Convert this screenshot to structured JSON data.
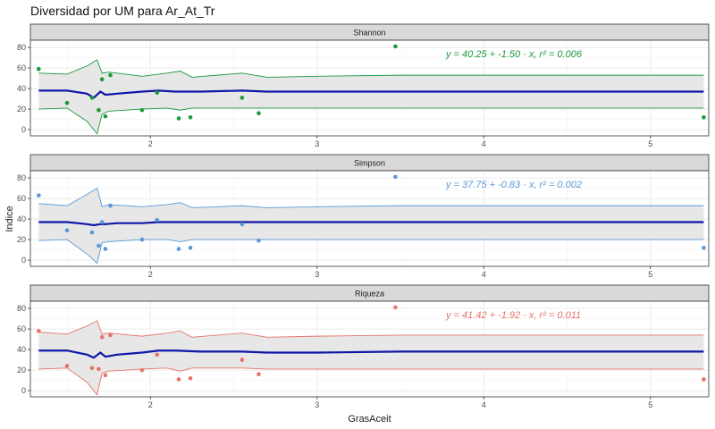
{
  "chart_title": "Diversidad por UM para Ar_At_Tr",
  "chart_data": {
    "type": "scatter",
    "title": "Diversidad por UM para Ar_At_Tr",
    "xlabel": "GrasAceit",
    "ylabel": "Indice",
    "xlim": [
      1.28,
      5.35
    ],
    "x_ticks": [
      "2",
      "3",
      "4",
      "5"
    ],
    "x_tick_values": [
      2,
      3,
      4,
      5
    ],
    "ylim": [
      -6,
      87
    ],
    "y_ticks": [
      "0",
      "20",
      "40",
      "60",
      "80"
    ],
    "y_tick_values": [
      0,
      20,
      40,
      60,
      80
    ],
    "grid": true,
    "panels": [
      {
        "name": "Shannon",
        "color": "#1a9a3a",
        "equation": "y = 40.25 + -1.50 · x,  r² = 0.006",
        "points": [
          [
            1.33,
            59
          ],
          [
            1.5,
            26
          ],
          [
            1.65,
            31
          ],
          [
            1.69,
            19
          ],
          [
            1.71,
            49
          ],
          [
            1.73,
            13
          ],
          [
            1.76,
            53
          ],
          [
            1.95,
            19
          ],
          [
            2.04,
            36
          ],
          [
            2.17,
            11
          ],
          [
            2.24,
            12
          ],
          [
            2.55,
            31
          ],
          [
            2.65,
            16
          ],
          [
            3.47,
            81
          ],
          [
            5.32,
            12
          ]
        ],
        "trend": [
          [
            1.33,
            38
          ],
          [
            1.5,
            38
          ],
          [
            1.62,
            35
          ],
          [
            1.66,
            31
          ],
          [
            1.7,
            37
          ],
          [
            1.73,
            34
          ],
          [
            1.8,
            35
          ],
          [
            1.95,
            37
          ],
          [
            2.05,
            38
          ],
          [
            2.15,
            37
          ],
          [
            2.3,
            37
          ],
          [
            2.55,
            38
          ],
          [
            2.7,
            37
          ],
          [
            3,
            37
          ],
          [
            3.5,
            37
          ],
          [
            4.5,
            37
          ],
          [
            5.32,
            37
          ]
        ],
        "upper": [
          [
            1.33,
            55
          ],
          [
            1.5,
            54
          ],
          [
            1.62,
            62
          ],
          [
            1.68,
            68
          ],
          [
            1.71,
            55
          ],
          [
            1.75,
            56
          ],
          [
            1.95,
            52
          ],
          [
            2.1,
            55
          ],
          [
            2.18,
            57
          ],
          [
            2.25,
            51
          ],
          [
            2.55,
            55
          ],
          [
            2.7,
            51
          ],
          [
            3,
            52
          ],
          [
            3.5,
            53
          ],
          [
            4.5,
            53
          ],
          [
            5.32,
            53
          ]
        ],
        "lower": [
          [
            1.33,
            20
          ],
          [
            1.5,
            21
          ],
          [
            1.62,
            8
          ],
          [
            1.68,
            -4
          ],
          [
            1.71,
            15
          ],
          [
            1.75,
            18
          ],
          [
            1.95,
            20
          ],
          [
            2.1,
            21
          ],
          [
            2.18,
            19
          ],
          [
            2.25,
            21
          ],
          [
            2.55,
            21
          ],
          [
            2.7,
            21
          ],
          [
            3,
            21
          ],
          [
            3.5,
            21
          ],
          [
            4.5,
            21
          ],
          [
            5.32,
            21
          ]
        ]
      },
      {
        "name": "Simpson",
        "color": "#5a98d8",
        "equation": "y = 37.75 + -0.83 · x,  r² = 0.002",
        "points": [
          [
            1.33,
            63
          ],
          [
            1.5,
            29
          ],
          [
            1.65,
            27
          ],
          [
            1.69,
            14
          ],
          [
            1.71,
            37
          ],
          [
            1.73,
            11
          ],
          [
            1.76,
            53
          ],
          [
            1.95,
            20
          ],
          [
            2.04,
            39
          ],
          [
            2.17,
            11
          ],
          [
            2.24,
            12
          ],
          [
            2.55,
            35
          ],
          [
            2.65,
            19
          ],
          [
            3.47,
            81
          ],
          [
            5.32,
            12
          ]
        ],
        "trend": [
          [
            1.33,
            37
          ],
          [
            1.5,
            37
          ],
          [
            1.62,
            35
          ],
          [
            1.66,
            34
          ],
          [
            1.7,
            35
          ],
          [
            1.73,
            35
          ],
          [
            1.8,
            36
          ],
          [
            1.95,
            36
          ],
          [
            2.05,
            37
          ],
          [
            2.3,
            37
          ],
          [
            2.55,
            37
          ],
          [
            3,
            37
          ],
          [
            4,
            37
          ],
          [
            5.32,
            37
          ]
        ],
        "upper": [
          [
            1.33,
            55
          ],
          [
            1.5,
            53
          ],
          [
            1.62,
            64
          ],
          [
            1.68,
            70
          ],
          [
            1.71,
            52
          ],
          [
            1.75,
            54
          ],
          [
            1.95,
            52
          ],
          [
            2.1,
            54
          ],
          [
            2.18,
            56
          ],
          [
            2.25,
            51
          ],
          [
            2.55,
            53
          ],
          [
            2.7,
            51
          ],
          [
            3,
            52
          ],
          [
            3.5,
            53
          ],
          [
            4.5,
            53
          ],
          [
            5.32,
            53
          ]
        ],
        "lower": [
          [
            1.33,
            19
          ],
          [
            1.5,
            20
          ],
          [
            1.62,
            6
          ],
          [
            1.68,
            -3
          ],
          [
            1.71,
            17
          ],
          [
            1.75,
            18
          ],
          [
            1.95,
            20
          ],
          [
            2.1,
            20
          ],
          [
            2.18,
            18
          ],
          [
            2.25,
            20
          ],
          [
            2.55,
            20
          ],
          [
            2.7,
            20
          ],
          [
            3,
            20
          ],
          [
            3.5,
            20
          ],
          [
            4.5,
            20
          ],
          [
            5.32,
            20
          ]
        ]
      },
      {
        "name": "Riqueza",
        "color": "#e5746a",
        "equation": "y = 41.42 + -1.92 · x,  r² = 0.011",
        "points": [
          [
            1.33,
            58
          ],
          [
            1.5,
            24
          ],
          [
            1.65,
            22
          ],
          [
            1.69,
            21
          ],
          [
            1.71,
            52
          ],
          [
            1.73,
            15
          ],
          [
            1.76,
            54
          ],
          [
            1.95,
            20
          ],
          [
            2.04,
            35
          ],
          [
            2.17,
            11
          ],
          [
            2.24,
            12
          ],
          [
            2.55,
            30
          ],
          [
            2.65,
            16
          ],
          [
            3.47,
            81
          ],
          [
            5.32,
            11
          ]
        ],
        "trend": [
          [
            1.33,
            39
          ],
          [
            1.5,
            39
          ],
          [
            1.62,
            35
          ],
          [
            1.66,
            32
          ],
          [
            1.7,
            37
          ],
          [
            1.73,
            33
          ],
          [
            1.8,
            35
          ],
          [
            1.95,
            37
          ],
          [
            2.05,
            39
          ],
          [
            2.15,
            39
          ],
          [
            2.3,
            38
          ],
          [
            2.55,
            38
          ],
          [
            2.7,
            37
          ],
          [
            3,
            37
          ],
          [
            3.5,
            38
          ],
          [
            4.5,
            38
          ],
          [
            5.32,
            38
          ]
        ],
        "upper": [
          [
            1.33,
            57
          ],
          [
            1.5,
            55
          ],
          [
            1.62,
            63
          ],
          [
            1.68,
            68
          ],
          [
            1.71,
            55
          ],
          [
            1.75,
            56
          ],
          [
            1.95,
            53
          ],
          [
            2.1,
            56
          ],
          [
            2.18,
            58
          ],
          [
            2.25,
            52
          ],
          [
            2.55,
            56
          ],
          [
            2.7,
            52
          ],
          [
            3,
            53
          ],
          [
            3.5,
            54
          ],
          [
            4.5,
            54
          ],
          [
            5.32,
            54
          ]
        ],
        "lower": [
          [
            1.33,
            21
          ],
          [
            1.5,
            22
          ],
          [
            1.62,
            8
          ],
          [
            1.68,
            -4
          ],
          [
            1.71,
            17
          ],
          [
            1.75,
            19
          ],
          [
            1.95,
            21
          ],
          [
            2.1,
            22
          ],
          [
            2.18,
            19
          ],
          [
            2.25,
            22
          ],
          [
            2.55,
            22
          ],
          [
            2.7,
            21
          ],
          [
            3,
            21
          ],
          [
            3.5,
            21
          ],
          [
            4.5,
            21
          ],
          [
            5.32,
            21
          ]
        ]
      }
    ],
    "trend_color": "#0f16a8",
    "band_fill": "#e6e6e6",
    "grid_color": "#ebebeb",
    "strip_fill": "#d9d9d9"
  }
}
